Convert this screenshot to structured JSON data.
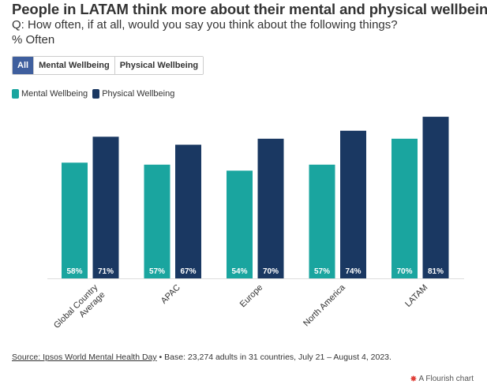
{
  "header": {
    "title": "People in LATAM think more about their mental and physical wellbeing",
    "subtitle": "Q: How often, if at all, would you say you think about the following things?",
    "subtitle2": "% Often"
  },
  "filters": {
    "buttons": [
      "All",
      "Mental Wellbeing",
      "Physical Wellbeing"
    ],
    "active": "All"
  },
  "colors": {
    "mental": "#1aa59f",
    "physical": "#1a3862",
    "active_button": "#3f5f9e"
  },
  "chart_data": {
    "type": "bar",
    "categories": [
      "Global Country Average",
      "APAC",
      "Europe",
      "North America",
      "LATAM"
    ],
    "series": [
      {
        "name": "Mental Wellbeing",
        "values": [
          58,
          57,
          54,
          57,
          70
        ]
      },
      {
        "name": "Physical Wellbeing",
        "values": [
          71,
          67,
          70,
          74,
          81
        ]
      }
    ],
    "data_labels": [
      [
        "58%",
        "57%",
        "54%",
        "57%",
        "70%"
      ],
      [
        "71%",
        "67%",
        "70%",
        "74%",
        "81%"
      ]
    ],
    "ylim": [
      0,
      100
    ],
    "legend_position": "top-left",
    "grid": false
  },
  "footer": {
    "source_link": "Source: Ipsos World Mental Health Day",
    "source_rest": " • Base: 23,274 adults in 31 countries, July 21 – August 4, 2023.",
    "flourish_mark": "✸",
    "flourish_label": "A Flourish chart"
  }
}
